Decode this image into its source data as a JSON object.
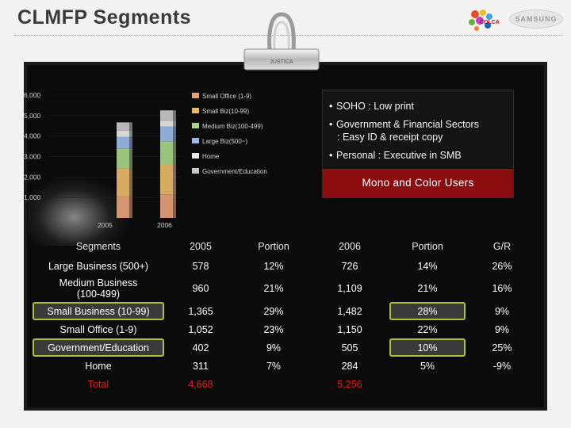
{
  "title": "CLMFP Segments",
  "logos": {
    "samsung": "SAMSUNG",
    "colca": "COLCA"
  },
  "clip_label": "JUSTICA",
  "info_box": {
    "bullets": [
      "SOHO : Low print",
      "Government & Financial Sectors",
      ": Easy ID & receipt copy",
      "Personal : Executive in SMB"
    ],
    "band": "Mono and Color Users"
  },
  "chart_data": {
    "type": "bar",
    "stacked": true,
    "categories": [
      "2005",
      "2006"
    ],
    "yticks": [
      "6,000",
      "5,000",
      "4,000",
      "3,000",
      "2,000",
      "1,000"
    ],
    "ylim": [
      0,
      6000
    ],
    "series": [
      {
        "name": "Small Office (1-9)",
        "color": "#e8a07a",
        "values": [
          1052,
          1150
        ]
      },
      {
        "name": "Small Biz(10-99)",
        "color": "#e8b868",
        "values": [
          1365,
          1482
        ]
      },
      {
        "name": "Medium Biz(100-499)",
        "color": "#a8d488",
        "values": [
          960,
          1109
        ]
      },
      {
        "name": "Large Biz(500~)",
        "color": "#9ab8e8",
        "values": [
          578,
          726
        ]
      },
      {
        "name": "Home",
        "color": "#e8e8e8",
        "values": [
          311,
          284
        ]
      },
      {
        "name": "Government/Education",
        "color": "#c8c8c8",
        "values": [
          402,
          505
        ]
      }
    ]
  },
  "table": {
    "headers": [
      "Segments",
      "2005",
      "Portion",
      "2006",
      "Portion",
      "G/R"
    ],
    "rows": [
      [
        "Large Business (500+)",
        "578",
        "12%",
        "726",
        "14%",
        "26%"
      ],
      [
        "Medium Business\n(100-499)",
        "960",
        "21%",
        "1,109",
        "21%",
        "16%"
      ],
      [
        "Small Business (10-99)",
        "1,365",
        "29%",
        "1,482",
        "28%",
        "9%"
      ],
      [
        "Small Office (1-9)",
        "1,052",
        "23%",
        "1,150",
        "22%",
        "9%"
      ],
      [
        "Government/Education",
        "402",
        "9%",
        "505",
        "10%",
        "25%"
      ],
      [
        "Home",
        "311",
        "7%",
        "284",
        "5%",
        "-9%"
      ],
      [
        "Total",
        "4,668",
        "",
        "5,256",
        "",
        ""
      ]
    ]
  }
}
